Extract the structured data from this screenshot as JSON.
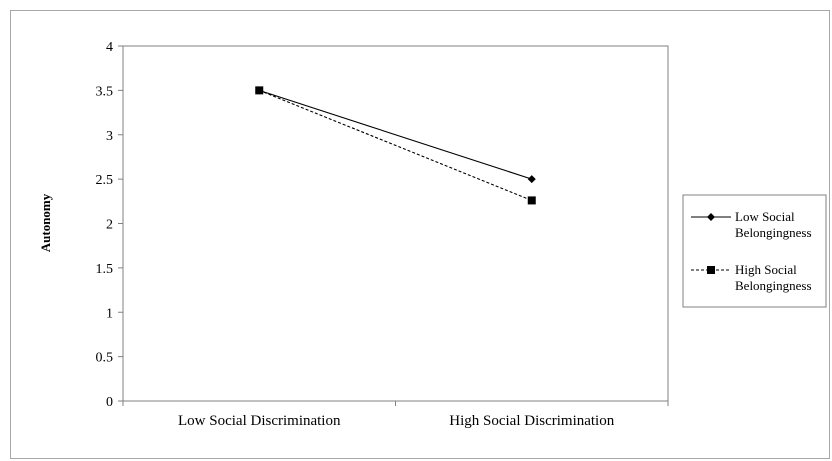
{
  "chart_data": {
    "type": "line",
    "title": "",
    "xlabel": "",
    "ylabel": "Autonomy",
    "categories": [
      "Low Social Discrimination",
      "High Social Discrimination"
    ],
    "ylim": [
      0,
      4
    ],
    "yticks": [
      0,
      0.5,
      1,
      1.5,
      2,
      2.5,
      3,
      3.5,
      4
    ],
    "ytick_labels": [
      "0",
      "0.5",
      "1",
      "1.5",
      "2",
      "2.5",
      "3",
      "3.5",
      "4"
    ],
    "grid": false,
    "legend_position": "right",
    "series": [
      {
        "name": "Low Social Belongingness",
        "legend_lines": [
          "Low Social",
          "Belongingness"
        ],
        "values": [
          3.5,
          2.5
        ],
        "marker": "diamond",
        "line_style": "solid",
        "color": "#000000"
      },
      {
        "name": "High Social Belongingness",
        "legend_lines": [
          "High Social",
          "Belongingness"
        ],
        "values": [
          3.5,
          2.26
        ],
        "marker": "square",
        "line_style": "dashed",
        "color": "#000000"
      }
    ]
  }
}
